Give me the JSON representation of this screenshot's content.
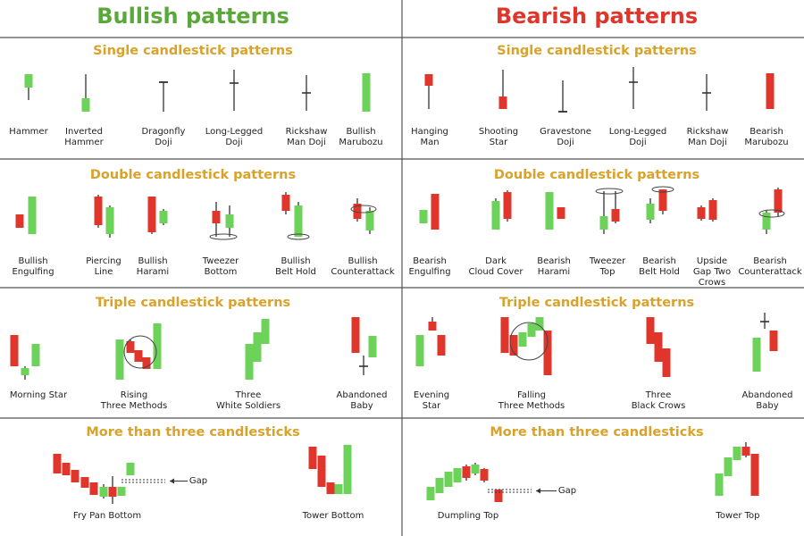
{
  "bullish": {
    "title": "Bullish patterns",
    "sections": [
      {
        "title": "Single candlestick patterns",
        "items": [
          {
            "label": [
              "Hammer"
            ]
          },
          {
            "label": [
              "Inverted",
              "Hammer"
            ]
          },
          {
            "label": [
              "Dragonfly",
              "Doji"
            ]
          },
          {
            "label": [
              "Long-Legged",
              "Doji"
            ]
          },
          {
            "label": [
              "Rickshaw",
              "Man Doji"
            ]
          },
          {
            "label": [
              "Bullish",
              "Marubozu"
            ]
          }
        ]
      },
      {
        "title": "Double candlestick patterns",
        "items": [
          {
            "label": [
              "Bullish",
              "Engulfing"
            ]
          },
          {
            "label": [
              "Piercing",
              "Line"
            ]
          },
          {
            "label": [
              "Bullish",
              "Harami"
            ]
          },
          {
            "label": [
              "Tweezer",
              "Bottom"
            ]
          },
          {
            "label": [
              "Bullish",
              "Belt Hold"
            ]
          },
          {
            "label": [
              "Bullish",
              "Counterattack"
            ]
          }
        ]
      },
      {
        "title": "Triple candlestick patterns",
        "items": [
          {
            "label": [
              "Morning Star"
            ]
          },
          {
            "label": [
              "Rising",
              "Three Methods"
            ]
          },
          {
            "label": [
              "Three",
              "White Soldiers"
            ]
          },
          {
            "label": [
              "Abandoned",
              "Baby"
            ]
          }
        ]
      },
      {
        "title": "More than three candlesticks",
        "items": [
          {
            "label": [
              "Fry Pan Bottom"
            ],
            "annotation": "Gap"
          },
          {
            "label": [
              "Tower Bottom"
            ]
          }
        ]
      }
    ]
  },
  "bearish": {
    "title": "Bearish patterns",
    "sections": [
      {
        "title": "Single candlestick patterns",
        "items": [
          {
            "label": [
              "Hanging",
              "Man"
            ]
          },
          {
            "label": [
              "Shooting",
              "Star"
            ]
          },
          {
            "label": [
              "Gravestone",
              "Doji"
            ]
          },
          {
            "label": [
              "Long-Legged",
              "Doji"
            ]
          },
          {
            "label": [
              "Rickshaw",
              "Man Doji"
            ]
          },
          {
            "label": [
              "Bearish",
              "Marubozu"
            ]
          }
        ]
      },
      {
        "title": "Double candlestick patterns",
        "items": [
          {
            "label": [
              "Bearish",
              "Engulfing"
            ]
          },
          {
            "label": [
              "Dark",
              "Cloud Cover"
            ]
          },
          {
            "label": [
              "Bearish",
              "Harami"
            ]
          },
          {
            "label": [
              "Tweezer",
              "Top"
            ]
          },
          {
            "label": [
              "Bearish",
              "Belt Hold"
            ]
          },
          {
            "label": [
              "Upside",
              "Gap Two",
              "Crows"
            ]
          },
          {
            "label": [
              "Bearish",
              "Counterattack"
            ]
          }
        ]
      },
      {
        "title": "Triple candlestick patterns",
        "items": [
          {
            "label": [
              "Evening",
              "Star"
            ]
          },
          {
            "label": [
              "Falling",
              "Three Methods"
            ]
          },
          {
            "label": [
              "Three",
              "Black Crows"
            ]
          },
          {
            "label": [
              "Abandoned",
              "Baby"
            ]
          }
        ]
      },
      {
        "title": "More than three candlesticks",
        "items": [
          {
            "label": [
              "Dumpling Top"
            ],
            "annotation": "Gap"
          },
          {
            "label": [
              "Tower Top"
            ]
          }
        ]
      }
    ]
  }
}
